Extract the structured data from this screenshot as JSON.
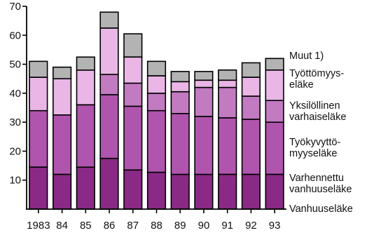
{
  "chart_data": {
    "type": "bar",
    "stacked": true,
    "title": "",
    "xlabel": "",
    "ylabel": "",
    "ylim": [
      0,
      70
    ],
    "yticks": [
      10,
      20,
      30,
      40,
      50,
      60,
      70
    ],
    "grid": false,
    "legend_position": "right",
    "categories": [
      "1983",
      "84",
      "85",
      "86",
      "87",
      "88",
      "89",
      "90",
      "91",
      "92",
      "93"
    ],
    "series": [
      {
        "name": "Vanhuuseläke",
        "color": "#8a2a86",
        "values": [
          14.5,
          12,
          14.5,
          17.5,
          13.5,
          12.7,
          12,
          12,
          12,
          12,
          12
        ]
      },
      {
        "name": "Varhennettu vanhuuseläke",
        "color": "#9c3a98",
        "values": [
          0,
          0,
          0,
          0,
          0,
          0,
          0,
          0,
          0,
          0,
          0
        ]
      },
      {
        "name": "Työkyvyttömyyseläke",
        "color": "#b055ae",
        "values": [
          19.5,
          20.5,
          21.5,
          22,
          22,
          21.3,
          21,
          20,
          19.5,
          19,
          18
        ]
      },
      {
        "name": "Yksilöllinen varhaiseläke",
        "color": "#c27ac0",
        "values": [
          0,
          0,
          0,
          7,
          8,
          6,
          7.5,
          10,
          10.5,
          8,
          7.5
        ]
      },
      {
        "name": "Työttömyyseläke",
        "color": "#e9b6e6",
        "values": [
          11.5,
          12.5,
          12,
          16,
          9,
          6,
          3.5,
          2.5,
          2.5,
          6.5,
          10.5
        ]
      },
      {
        "name": "Muut 1)",
        "color": "#b3b3b3",
        "values": [
          5.5,
          4,
          4.5,
          5.5,
          8,
          5,
          3.5,
          3,
          3.5,
          5,
          4
        ]
      }
    ],
    "legend_labels": [
      [
        "Muut  1)"
      ],
      [
        "Työttömyys-",
        "eläke"
      ],
      [
        "Yksilöllinen",
        "varhaiseläke"
      ],
      [
        "Työkyvyttö-",
        "myyseläke"
      ],
      [
        "Varhennettu",
        "vanhuuseläke"
      ],
      [
        "Vanhuuseläke"
      ]
    ]
  }
}
